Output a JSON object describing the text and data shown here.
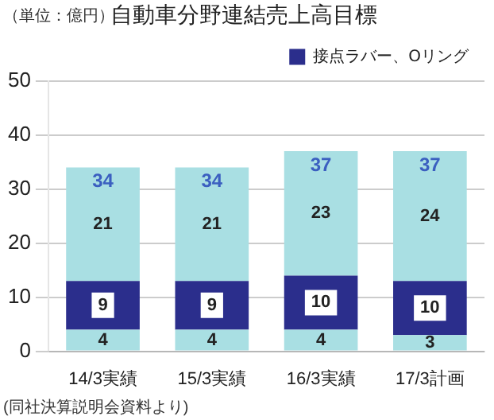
{
  "chart_data": {
    "type": "bar",
    "title": "自動車分野連結売上高目標",
    "categories": [
      "14/3実績",
      "15/3実績",
      "16/3実績",
      "17/3計画"
    ],
    "series": [
      {
        "color": "#a9dfe3",
        "values": [
          4,
          4,
          4,
          3
        ]
      },
      {
        "name": "接点ラバー、Oリング",
        "color": "#2b2e8c",
        "values": [
          9,
          9,
          10,
          10
        ]
      },
      {
        "color": "#a9dfe3",
        "values": [
          21,
          21,
          23,
          24
        ]
      }
    ],
    "stacked": true,
    "data_labels": true,
    "totals": [
      "34",
      "34",
      "37",
      "37"
    ],
    "ylim": [
      0,
      50
    ],
    "yticks": [
      0,
      10,
      20,
      30,
      40,
      50
    ],
    "grid": "y",
    "legend": "top",
    "annotations": [
      "（単位：億円）",
      "(同社決算説明会資料より)"
    ]
  }
}
